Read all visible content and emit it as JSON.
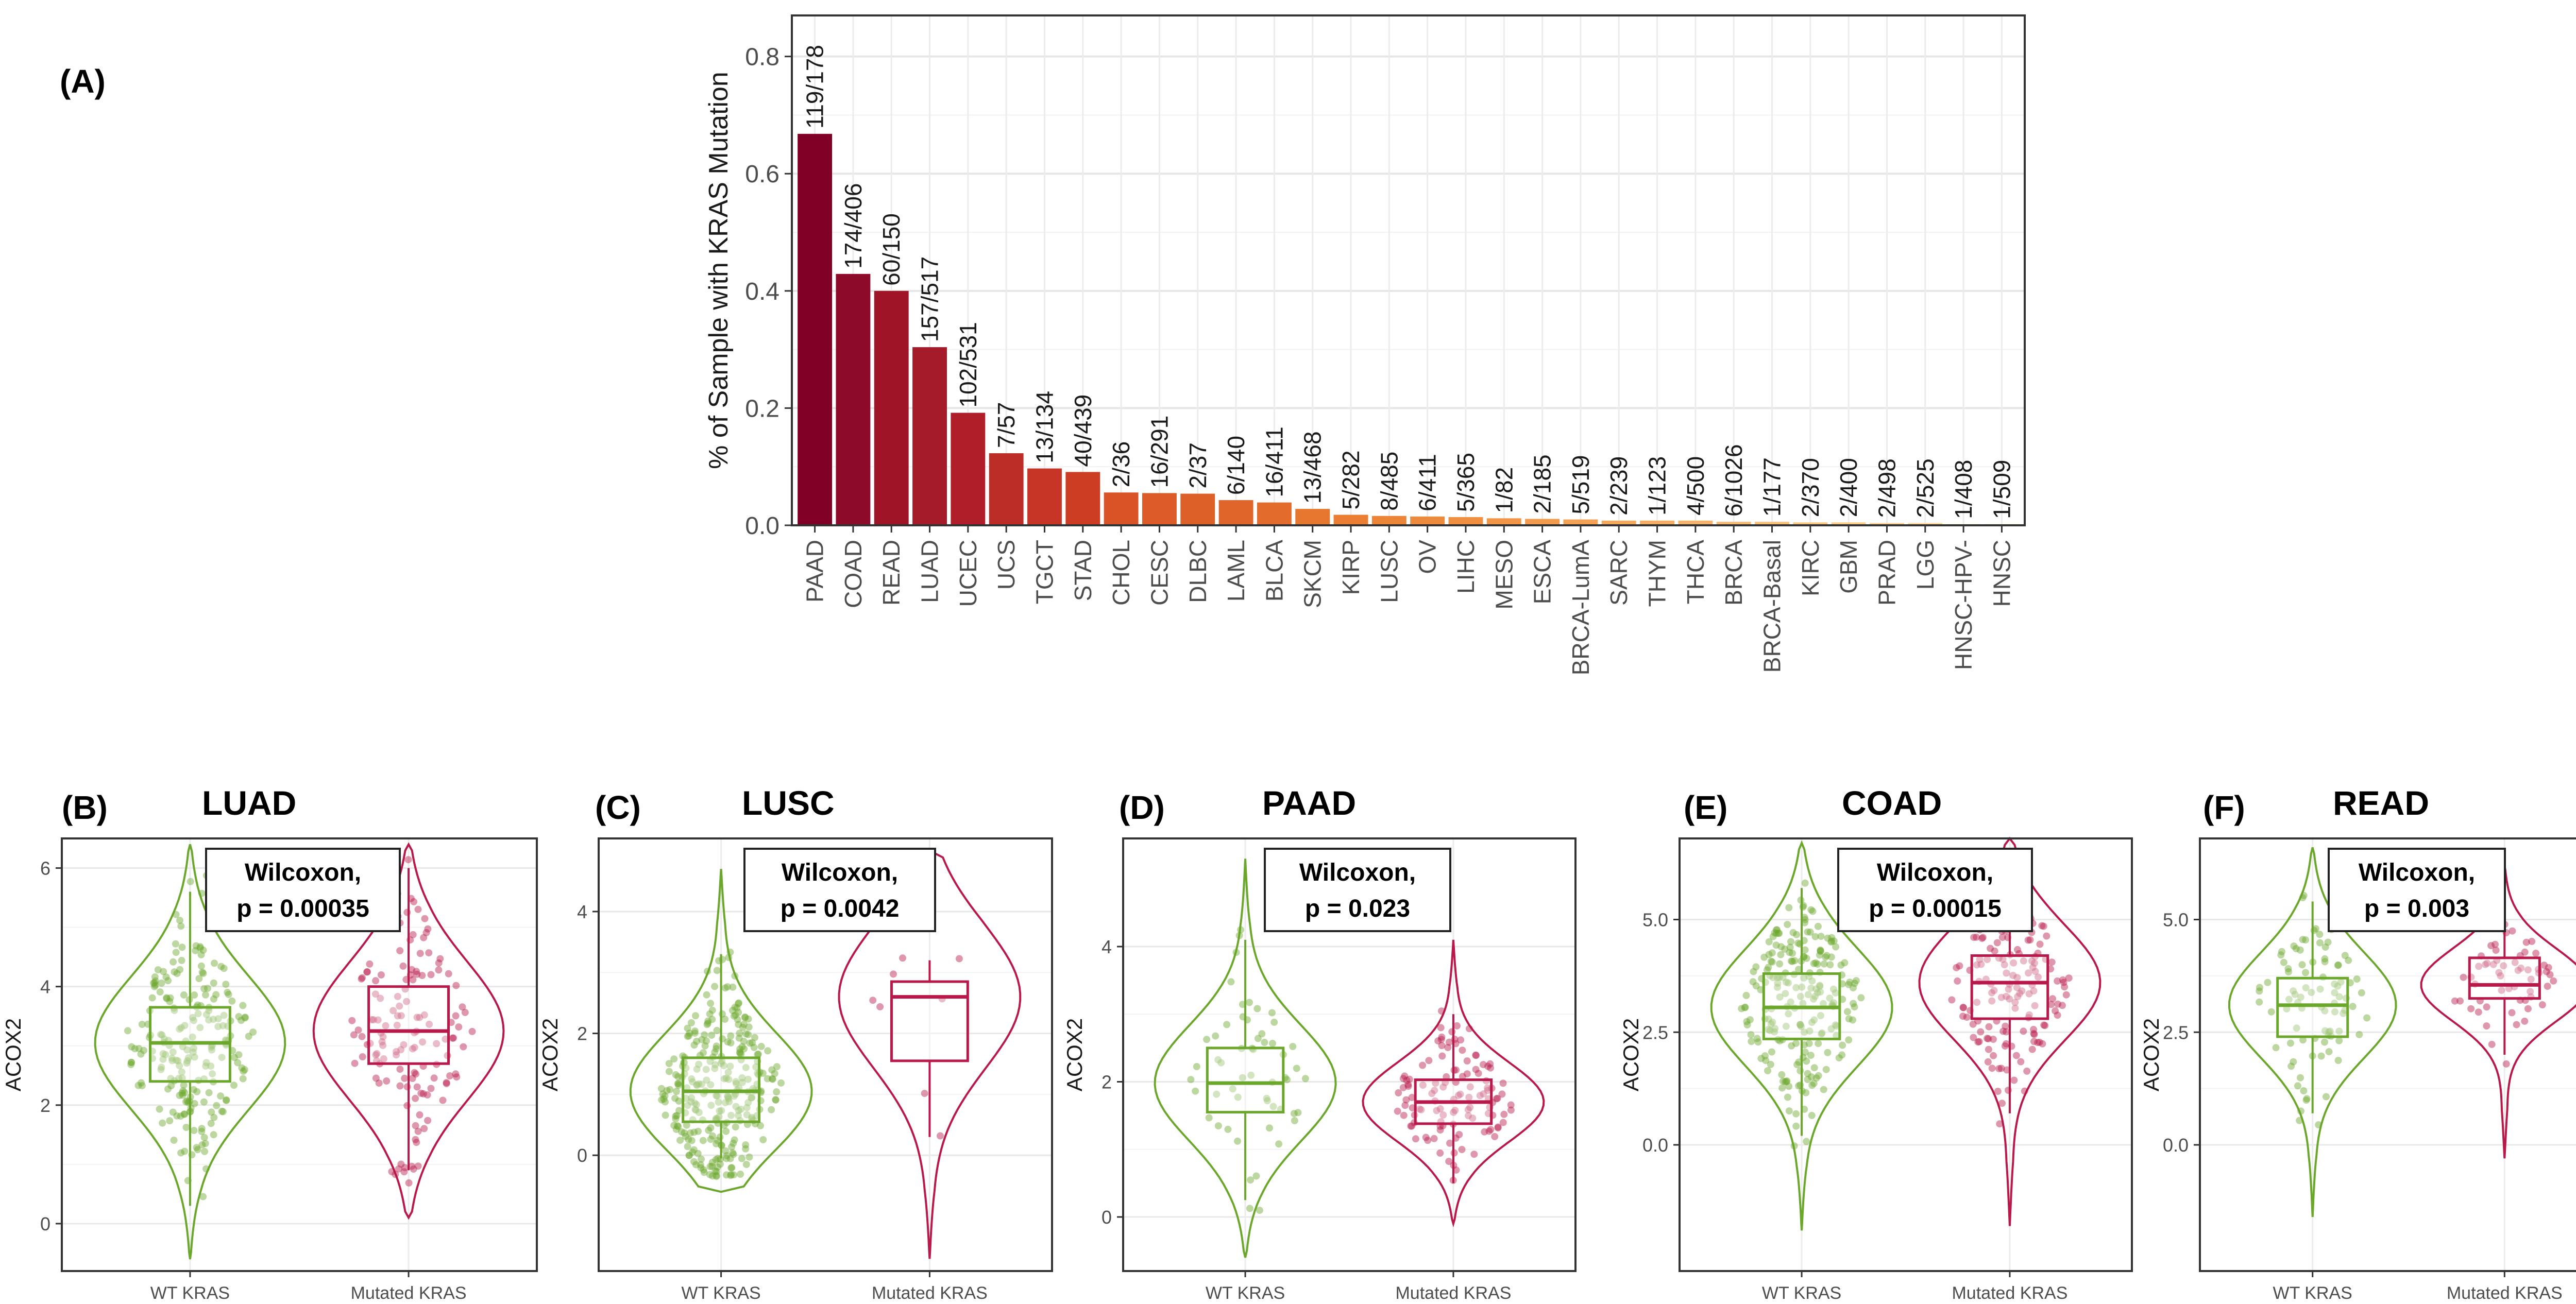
{
  "chart_data": [
    {
      "panel": "(A)",
      "type": "bar",
      "title": "",
      "xlabel": "",
      "ylabel": "% of Sample with KRAS Mutation",
      "ylim": [
        0,
        0.87
      ],
      "yticks": [
        "0.0",
        "0.2",
        "0.4",
        "0.6",
        "0.8"
      ],
      "grid": true,
      "categories": [
        "PAAD",
        "COAD",
        "READ",
        "LUAD",
        "UCEC",
        "UCS",
        "TGCT",
        "STAD",
        "CHOL",
        "CESC",
        "DLBC",
        "LAML",
        "BLCA",
        "SKCM",
        "KIRP",
        "LUSC",
        "OV",
        "LIHC",
        "MESO",
        "ESCA",
        "BRCA-LumA",
        "SARC",
        "THYM",
        "THCA",
        "BRCA",
        "BRCA-Basal",
        "KIRC",
        "GBM",
        "PRAD",
        "LGG",
        "HNSC-HPV-",
        "HNSC"
      ],
      "values": [
        0.668,
        0.429,
        0.4,
        0.304,
        0.192,
        0.123,
        0.097,
        0.091,
        0.056,
        0.055,
        0.054,
        0.043,
        0.039,
        0.028,
        0.018,
        0.016,
        0.015,
        0.014,
        0.012,
        0.011,
        0.01,
        0.008,
        0.008,
        0.008,
        0.006,
        0.006,
        0.005,
        0.005,
        0.004,
        0.004,
        0.002,
        0.002
      ],
      "labels": [
        "119/178",
        "174/406",
        "60/150",
        "157/517",
        "102/531",
        "7/57",
        "13/134",
        "40/439",
        "2/36",
        "16/291",
        "2/37",
        "6/140",
        "16/411",
        "13/468",
        "5/282",
        "8/485",
        "6/411",
        "5/365",
        "1/82",
        "2/185",
        "5/519",
        "2/239",
        "1/123",
        "4/500",
        "6/1026",
        "1/177",
        "2/370",
        "2/400",
        "2/498",
        "2/525",
        "1/408",
        "1/509"
      ],
      "colors": [
        "#800026",
        "#8e0a2a",
        "#a01428",
        "#a51b29",
        "#b01f29",
        "#bd2d27",
        "#c63526",
        "#cc3d24",
        "#d95327",
        "#dc5b28",
        "#de6029",
        "#e0652a",
        "#e36c2c",
        "#e7762f",
        "#ea7f33",
        "#ec8537",
        "#ee8a3b",
        "#f08f40",
        "#f29546",
        "#f39b4d",
        "#f4a154",
        "#f5a75b",
        "#f6ad62",
        "#f7b369",
        "#f8b970",
        "#f9bf78",
        "#fac580",
        "#fbcb88",
        "#fcd190",
        "#fdd799",
        "#fdddA2",
        "#fee3ab"
      ]
    },
    {
      "panel": "(B)",
      "type": "violin",
      "title": "LUAD",
      "xlabel": "",
      "ylabel": "ACOX2",
      "ylim": [
        -0.8,
        6.5
      ],
      "yticks": [
        0,
        2,
        4,
        6
      ],
      "ytick_labels": [
        "0",
        "2",
        "4",
        "6"
      ],
      "categories": [
        "WT KRAS",
        "Mutated KRAS"
      ],
      "groups": [
        {
          "name": "WT KRAS",
          "color": "#6aa72b",
          "min": -0.6,
          "max": 6.4,
          "q1": 2.4,
          "median": 3.05,
          "q3": 3.65,
          "whisker_low": 0.3,
          "whisker_high": 5.6,
          "n": 220
        },
        {
          "name": "Mutated KRAS",
          "color": "#b8194a",
          "min": 0.1,
          "max": 6.4,
          "q1": 2.7,
          "median": 3.25,
          "q3": 4.0,
          "whisker_low": 0.9,
          "whisker_high": 6.0,
          "n": 140
        }
      ],
      "annotation": [
        "Wilcoxon,",
        "p = 0.00035"
      ]
    },
    {
      "panel": "(C)",
      "type": "violin",
      "title": "LUSC",
      "xlabel": "",
      "ylabel": "ACOX2",
      "ylim": [
        -1.9,
        5.2
      ],
      "yticks": [
        0,
        2,
        4
      ],
      "ytick_labels": [
        "0",
        "2",
        "4"
      ],
      "categories": [
        "WT KRAS",
        "Mutated KRAS"
      ],
      "groups": [
        {
          "name": "WT KRAS",
          "color": "#6aa72b",
          "min": -0.6,
          "max": 4.7,
          "q1": 0.55,
          "median": 1.05,
          "q3": 1.6,
          "whisker_low": -0.05,
          "whisker_high": 3.3,
          "n": 300
        },
        {
          "name": "Mutated KRAS",
          "color": "#b8194a",
          "min": -1.7,
          "max": 5.0,
          "q1": 1.55,
          "median": 2.6,
          "q3": 2.85,
          "whisker_low": 0.3,
          "whisker_high": 3.2,
          "n": 8
        }
      ],
      "annotation": [
        "Wilcoxon,",
        "p = 0.0042"
      ]
    },
    {
      "panel": "(D)",
      "type": "violin",
      "title": "PAAD",
      "xlabel": "",
      "ylabel": "ACOX2",
      "ylim": [
        -0.8,
        5.6
      ],
      "yticks": [
        0,
        2,
        4
      ],
      "ytick_labels": [
        "0",
        "2",
        "4"
      ],
      "categories": [
        "WT KRAS",
        "Mutated KRAS"
      ],
      "groups": [
        {
          "name": "WT KRAS",
          "color": "#6aa72b",
          "min": -0.6,
          "max": 5.3,
          "q1": 1.55,
          "median": 1.98,
          "q3": 2.5,
          "whisker_low": 0.25,
          "whisker_high": 4.1,
          "n": 55
        },
        {
          "name": "Mutated KRAS",
          "color": "#b8194a",
          "min": -0.1,
          "max": 4.1,
          "q1": 1.38,
          "median": 1.7,
          "q3": 2.03,
          "whisker_low": 0.5,
          "whisker_high": 3.0,
          "n": 120
        }
      ],
      "annotation": [
        "Wilcoxon,",
        "p = 0.023"
      ]
    },
    {
      "panel": "(E)",
      "type": "violin",
      "title": "COAD",
      "xlabel": "",
      "ylabel": "ACOX2",
      "ylim": [
        -2.8,
        6.8
      ],
      "yticks": [
        0,
        2.5,
        5.0
      ],
      "ytick_labels": [
        "0.0",
        "2.5",
        "5.0"
      ],
      "categories": [
        "WT KRAS",
        "Mutated KRAS"
      ],
      "groups": [
        {
          "name": "WT KRAS",
          "color": "#6aa72b",
          "min": -1.9,
          "max": 6.7,
          "q1": 2.35,
          "median": 3.05,
          "q3": 3.8,
          "whisker_low": 0.2,
          "whisker_high": 5.7,
          "n": 230
        },
        {
          "name": "Mutated KRAS",
          "color": "#b8194a",
          "min": -1.8,
          "max": 6.8,
          "q1": 2.8,
          "median": 3.6,
          "q3": 4.2,
          "whisker_low": 0.7,
          "whisker_high": 6.2,
          "n": 170
        }
      ],
      "annotation": [
        "Wilcoxon,",
        "p = 0.00015"
      ]
    },
    {
      "panel": "(F)",
      "type": "violin",
      "title": "READ",
      "xlabel": "",
      "ylabel": "ACOX2",
      "ylim": [
        -2.8,
        6.8
      ],
      "yticks": [
        0,
        2.5,
        5.0
      ],
      "ytick_labels": [
        "0.0",
        "2.5",
        "5.0"
      ],
      "categories": [
        "WT KRAS",
        "Mutated KRAS"
      ],
      "groups": [
        {
          "name": "WT KRAS",
          "color": "#6aa72b",
          "min": -1.6,
          "max": 6.6,
          "q1": 2.4,
          "median": 3.1,
          "q3": 3.7,
          "whisker_low": 0.7,
          "whisker_high": 5.4,
          "n": 90
        },
        {
          "name": "Mutated KRAS",
          "color": "#b8194a",
          "min": -0.3,
          "max": 6.2,
          "q1": 3.25,
          "median": 3.55,
          "q3": 4.15,
          "whisker_low": 2.0,
          "whisker_high": 5.5,
          "n": 60
        }
      ],
      "annotation": [
        "Wilcoxon,",
        "p = 0.003"
      ]
    }
  ]
}
